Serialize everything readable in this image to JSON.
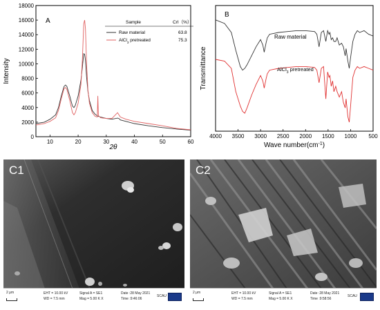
{
  "chart_data": [
    {
      "type": "line",
      "panel_label": "A",
      "xlabel": "2θ",
      "ylabel": "Intensity",
      "xlim": [
        5,
        60
      ],
      "ylim": [
        0,
        18000
      ],
      "xticks": [
        10,
        20,
        30,
        40,
        50,
        60
      ],
      "yticks": [
        0,
        2000,
        4000,
        6000,
        8000,
        10000,
        12000,
        14000,
        16000,
        18000
      ],
      "legend": {
        "placement": "top-right",
        "header_sample": "Sample",
        "header_cri_main": "CrI",
        "header_cri_unit": "（%）",
        "entries": [
          {
            "name": "Raw material",
            "cri": "63.8",
            "color": "#333333"
          },
          {
            "name_main": "AlCl",
            "name_sub": "3",
            "name_rest": " pretreated",
            "cri": "75.3",
            "color": "#e06060"
          }
        ]
      },
      "series": [
        {
          "name": "Raw material",
          "color": "#333333",
          "x": [
            5,
            8,
            10,
            12,
            13,
            14,
            15,
            15.5,
            16,
            17,
            18,
            18.5,
            19,
            20,
            21,
            21.5,
            22,
            22.3,
            22.6,
            23,
            23.5,
            24,
            25,
            26,
            27,
            28,
            30,
            32,
            34,
            34.5,
            35,
            37,
            40,
            45,
            50,
            55,
            60
          ],
          "y": [
            1800,
            2000,
            2400,
            3000,
            4000,
            5600,
            6900,
            7100,
            6900,
            5600,
            4200,
            4000,
            4300,
            5600,
            7800,
            9500,
            11400,
            11300,
            10500,
            8200,
            6200,
            5000,
            3600,
            3100,
            2800,
            2700,
            2500,
            2400,
            2550,
            2500,
            2300,
            2100,
            1800,
            1500,
            1250,
            1050,
            900
          ]
        },
        {
          "name": "AlCl3 pretreated",
          "color": "#e06060",
          "x": [
            5,
            8,
            10,
            12,
            13,
            14,
            15,
            15.5,
            16,
            17,
            18,
            18.5,
            19,
            20,
            21,
            21.5,
            22,
            22.3,
            22.6,
            23,
            23.5,
            24,
            25,
            26,
            26.8,
            27,
            27.2,
            28,
            30,
            32,
            34,
            34.5,
            35,
            37,
            40,
            45,
            50,
            55,
            60
          ],
          "y": [
            1600,
            1800,
            2100,
            2600,
            3600,
            5200,
            6600,
            6750,
            6500,
            5000,
            3300,
            3000,
            3300,
            4600,
            7200,
            10500,
            15500,
            16000,
            14800,
            10000,
            6400,
            4600,
            3300,
            2800,
            2700,
            5600,
            2900,
            2600,
            2500,
            2500,
            3300,
            3000,
            2700,
            2400,
            2100,
            1800,
            1500,
            1150,
            950
          ]
        }
      ]
    },
    {
      "type": "line",
      "panel_label": "B",
      "xlabel_main": "Wave number(cm",
      "xlabel_sup": "-1",
      "xlabel_end": ")",
      "ylabel": "Transmittance",
      "xlim": [
        4000,
        500
      ],
      "xticks": [
        4000,
        3500,
        3000,
        2500,
        2000,
        1500,
        1000,
        500
      ],
      "y_ticks_shown": false,
      "series": [
        {
          "name": "Raw material",
          "color": "#333333",
          "x": [
            4000,
            3800,
            3650,
            3550,
            3450,
            3400,
            3350,
            3300,
            3200,
            3100,
            3000,
            2950,
            2920,
            2880,
            2850,
            2800,
            2600,
            2400,
            2200,
            2000,
            1800,
            1750,
            1700,
            1650,
            1600,
            1550,
            1510,
            1480,
            1460,
            1430,
            1400,
            1370,
            1330,
            1300,
            1250,
            1200,
            1160,
            1120,
            1100,
            1060,
            1030,
            1000,
            950,
            900,
            850,
            800,
            700,
            600,
            500
          ],
          "y": [
            92,
            90,
            85,
            75,
            66,
            64,
            65,
            67,
            72,
            77,
            81,
            78,
            74,
            79,
            82,
            84,
            85,
            85.5,
            86,
            86,
            85.5,
            84,
            77,
            85,
            86,
            80,
            86,
            84,
            85,
            81,
            82,
            80,
            80,
            82,
            78,
            79,
            77,
            72,
            76,
            69,
            65,
            71,
            80,
            84,
            86,
            85,
            86,
            84,
            83
          ]
        },
        {
          "name_main": "AlCl",
          "name_sub": "3",
          "name_rest": " pretreated",
          "color": "#e03030",
          "x": [
            4000,
            3800,
            3650,
            3550,
            3450,
            3400,
            3350,
            3300,
            3200,
            3100,
            3000,
            2950,
            2920,
            2880,
            2850,
            2800,
            2600,
            2400,
            2200,
            2000,
            1800,
            1750,
            1700,
            1650,
            1600,
            1550,
            1510,
            1480,
            1460,
            1430,
            1400,
            1370,
            1330,
            1300,
            1250,
            1200,
            1160,
            1120,
            1100,
            1060,
            1030,
            1000,
            950,
            900,
            850,
            800,
            700,
            600,
            500
          ],
          "y": [
            70,
            69,
            65,
            52,
            44,
            41,
            40,
            43,
            50,
            56,
            61,
            58,
            54,
            59,
            62,
            64,
            65,
            65.5,
            66,
            66,
            65.5,
            64,
            57,
            65,
            66,
            48,
            63,
            60,
            61,
            55,
            58,
            52,
            55,
            52,
            49,
            52,
            46,
            43,
            48,
            38,
            35,
            44,
            60,
            64,
            66,
            65,
            66,
            65,
            64
          ]
        }
      ]
    }
  ],
  "sem": [
    {
      "label": "C1",
      "scale": "2 μm",
      "eht": "EHT = 10.00 kV",
      "wd": "WD =  7.5 mm",
      "signal": "Signal A = SE1",
      "mag": "Mag =    5.00 K X",
      "date": "Date :28 May 2021",
      "time": "Time :9:46:06",
      "org": "SCAU"
    },
    {
      "label": "C2",
      "scale": "2 μm",
      "eht": "EHT = 10.00 kV",
      "wd": "WD =  7.5 mm",
      "signal": "Signal A = SE1",
      "mag": "Mag =    5.00 K X",
      "date": "Date :28 May 2021",
      "time": "Time :9:58:56",
      "org": "SCAU"
    }
  ]
}
